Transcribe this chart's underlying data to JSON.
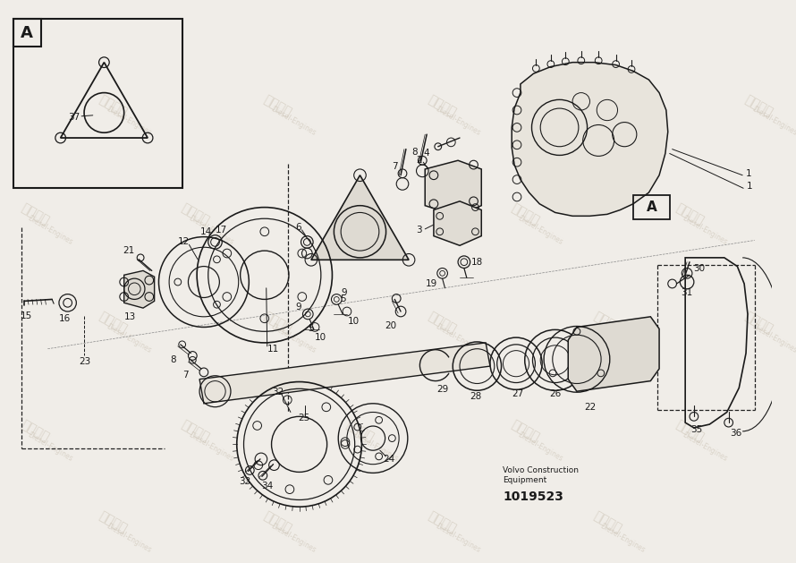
{
  "bg_color": "#f0ede8",
  "line_color": "#1a1a1a",
  "part_number": "1019523",
  "company_line1": "Volvo Construction",
  "company_line2": "Equipment",
  "fig_width": 8.9,
  "fig_height": 6.29,
  "dpi": 100
}
